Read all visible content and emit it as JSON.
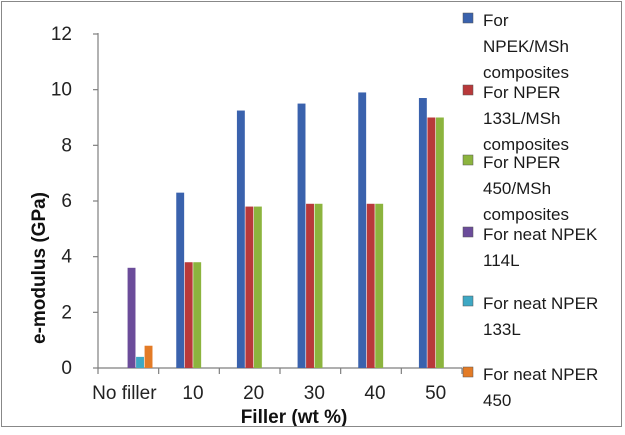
{
  "chart_data": {
    "type": "bar",
    "xlabel": "Filler (wt %)",
    "ylabel": "e-modulus (GPa)",
    "ylim": [
      0,
      12
    ],
    "yticks": [
      0,
      2,
      4,
      6,
      8,
      10,
      12
    ],
    "grid": false,
    "legend_position": "right",
    "categories": [
      "No filler",
      "10",
      "20",
      "30",
      "40",
      "50"
    ],
    "series": [
      {
        "name": "For NPEK/MSh composites",
        "color": "#3a62ad",
        "values": [
          null,
          6.3,
          9.25,
          9.5,
          9.9,
          9.7
        ]
      },
      {
        "name": "For NPER 133L/MSh composites",
        "color": "#b8393a",
        "values": [
          null,
          3.8,
          5.8,
          5.9,
          5.9,
          9.0
        ]
      },
      {
        "name": "For NPER 450/MSh composites",
        "color": "#8cb43e",
        "values": [
          null,
          3.8,
          5.8,
          5.9,
          5.9,
          9.0
        ]
      },
      {
        "name": "For neat NPEK 114L",
        "color": "#6b4c9a",
        "values": [
          3.6,
          null,
          null,
          null,
          null,
          null
        ]
      },
      {
        "name": "For neat NPER 133L",
        "color": "#3ea8c4",
        "values": [
          0.4,
          null,
          null,
          null,
          null,
          null
        ]
      },
      {
        "name": "For neat NPER 450",
        "color": "#e37b26",
        "values": [
          0.8,
          null,
          null,
          null,
          null,
          null
        ]
      }
    ]
  }
}
